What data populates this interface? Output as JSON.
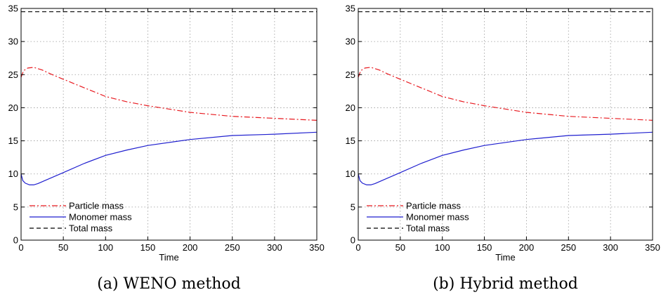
{
  "chart_data": [
    {
      "type": "line",
      "caption": "(a) WENO method",
      "xlabel": "Time",
      "ylabel": "",
      "xlim": [
        0,
        350
      ],
      "ylim": [
        0,
        35
      ],
      "xticks": [
        0,
        50,
        100,
        150,
        200,
        250,
        300,
        350
      ],
      "yticks": [
        0,
        5,
        10,
        15,
        20,
        25,
        30,
        35
      ],
      "grid": true,
      "legend_position": "bottom-left",
      "series": [
        {
          "name": "Particle mass",
          "color": "#e8191f",
          "style": "dashdot",
          "x": [
            0,
            3,
            8,
            15,
            25,
            35,
            50,
            75,
            100,
            125,
            150,
            200,
            250,
            300,
            350
          ],
          "y": [
            24.6,
            25.6,
            26.0,
            26.1,
            25.7,
            25.1,
            24.3,
            23.0,
            21.7,
            20.9,
            20.3,
            19.3,
            18.7,
            18.4,
            18.1
          ]
        },
        {
          "name": "Monomer mass",
          "color": "#1f1fcf",
          "style": "solid",
          "x": [
            0,
            2,
            5,
            10,
            15,
            20,
            30,
            50,
            75,
            100,
            125,
            150,
            200,
            250,
            300,
            350
          ],
          "y": [
            10.0,
            9.0,
            8.6,
            8.35,
            8.35,
            8.55,
            9.1,
            10.2,
            11.6,
            12.8,
            13.6,
            14.3,
            15.2,
            15.8,
            16.0,
            16.3
          ]
        },
        {
          "name": "Total mass",
          "color": "#000000",
          "style": "dashed",
          "x": [
            0,
            350
          ],
          "y": [
            34.5,
            34.5
          ]
        }
      ]
    },
    {
      "type": "line",
      "caption": "(b) Hybrid method",
      "xlabel": "Time",
      "ylabel": "",
      "xlim": [
        0,
        350
      ],
      "ylim": [
        0,
        35
      ],
      "xticks": [
        0,
        50,
        100,
        150,
        200,
        250,
        300,
        350
      ],
      "yticks": [
        0,
        5,
        10,
        15,
        20,
        25,
        30,
        35
      ],
      "grid": true,
      "legend_position": "bottom-left",
      "series": [
        {
          "name": "Particle mass",
          "color": "#e8191f",
          "style": "dashdot",
          "x": [
            0,
            3,
            8,
            15,
            25,
            35,
            50,
            75,
            100,
            125,
            150,
            200,
            250,
            300,
            350
          ],
          "y": [
            24.6,
            25.6,
            26.0,
            26.1,
            25.7,
            25.1,
            24.3,
            23.0,
            21.7,
            20.9,
            20.3,
            19.3,
            18.7,
            18.4,
            18.1
          ]
        },
        {
          "name": "Monomer mass",
          "color": "#1f1fcf",
          "style": "solid",
          "x": [
            0,
            2,
            5,
            10,
            15,
            20,
            30,
            50,
            75,
            100,
            125,
            150,
            200,
            250,
            300,
            350
          ],
          "y": [
            10.0,
            9.0,
            8.6,
            8.35,
            8.35,
            8.55,
            9.1,
            10.2,
            11.6,
            12.8,
            13.6,
            14.3,
            15.2,
            15.8,
            16.0,
            16.3
          ]
        },
        {
          "name": "Total mass",
          "color": "#000000",
          "style": "dashed",
          "x": [
            0,
            350
          ],
          "y": [
            34.5,
            34.5
          ]
        }
      ]
    }
  ]
}
